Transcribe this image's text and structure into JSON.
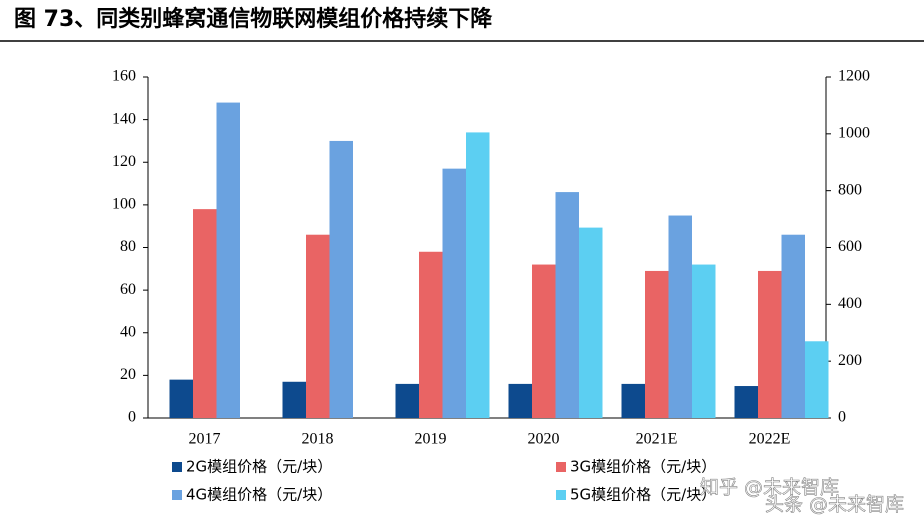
{
  "chart_data": {
    "type": "bar",
    "title": "图 73、同类别蜂窝通信物联网模组价格持续下降",
    "categories": [
      "2017",
      "2018",
      "2019",
      "2020",
      "2021E",
      "2022E"
    ],
    "series": [
      {
        "name": "2G模组价格（元/块）",
        "color": "#0d4a8e",
        "values": [
          18,
          17,
          16,
          16,
          16,
          15
        ]
      },
      {
        "name": "3G模组价格（元/块）",
        "color": "#e96464",
        "values": [
          98,
          86,
          78,
          72,
          69,
          69
        ]
      },
      {
        "name": "4G模组价格（元/块）",
        "color": "#6aa2e0",
        "values": [
          148,
          130,
          117,
          106,
          95,
          86
        ]
      },
      {
        "name": "5G模组价格（元/块）",
        "color": "#5ccff2",
        "axis": "y2",
        "values": [
          null,
          null,
          1005,
          670,
          540,
          270
        ]
      }
    ],
    "ylim": [
      0,
      160
    ],
    "yticks": [
      0,
      20,
      40,
      60,
      80,
      100,
      120,
      140,
      160
    ],
    "y2lim": [
      0,
      1200
    ],
    "y2ticks": [
      0,
      200,
      400,
      600,
      800,
      1000,
      1200
    ],
    "watermarks": [
      "知乎 @未来智库",
      "头条 @未来智库"
    ]
  }
}
